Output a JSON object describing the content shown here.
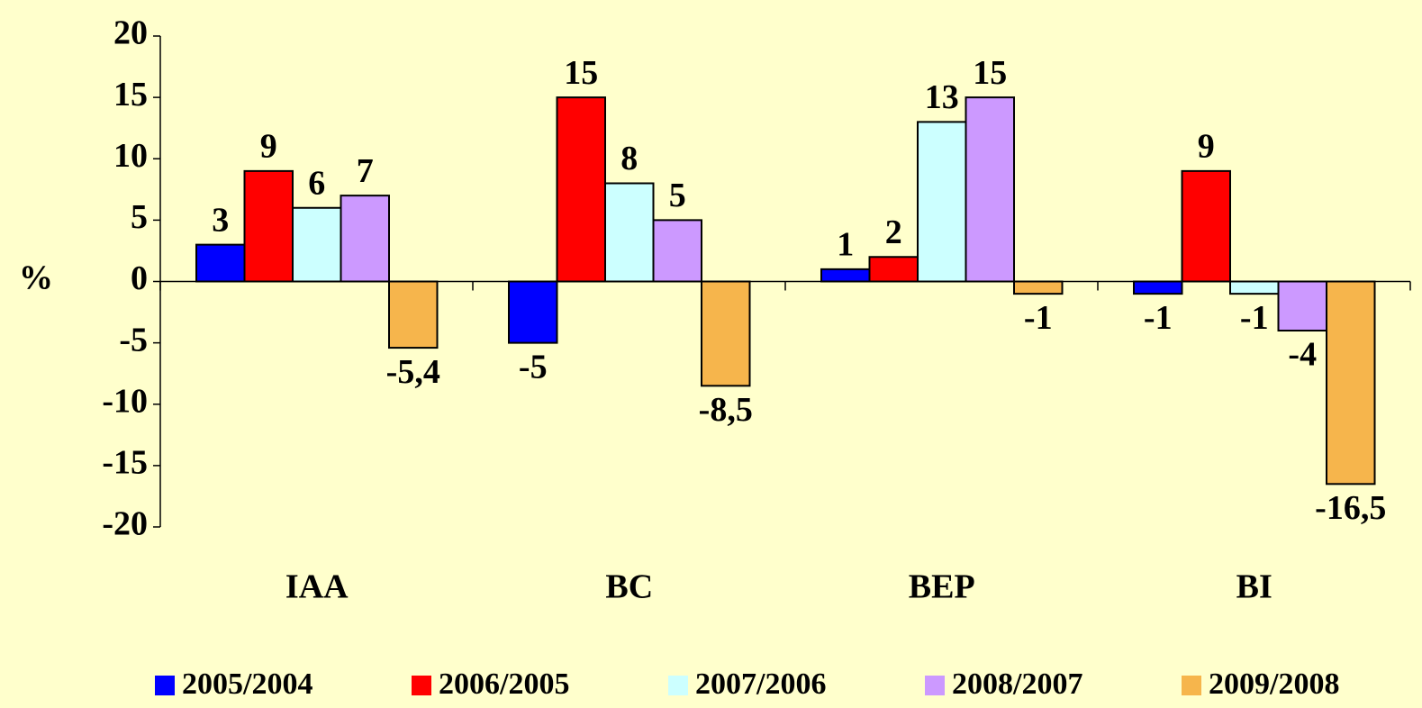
{
  "chart_data": {
    "type": "bar",
    "y_label": "%",
    "categories": [
      "IAA",
      "BC",
      "BEP",
      "BI"
    ],
    "series": [
      {
        "name": "2005/2004",
        "color": "#0000ff",
        "values": [
          3,
          -5,
          1,
          -1
        ]
      },
      {
        "name": "2006/2005",
        "color": "#ff0000",
        "values": [
          9,
          15,
          2,
          9
        ]
      },
      {
        "name": "2007/2006",
        "color": "#ccffff",
        "values": [
          6,
          8,
          13,
          -1
        ]
      },
      {
        "name": "2008/2007",
        "color": "#cc99ff",
        "values": [
          7,
          5,
          15,
          -4
        ]
      },
      {
        "name": "2009/2008",
        "color": "#f6b54c",
        "values": [
          -5.4,
          -8.5,
          -1,
          -16.5
        ],
        "value_labels": [
          "-5,4",
          "-8,5",
          "-1",
          "-16,5"
        ]
      }
    ],
    "ylim": [
      -20,
      20
    ],
    "yticks": [
      -20,
      -15,
      -10,
      -5,
      0,
      5,
      10,
      15,
      20
    ]
  }
}
